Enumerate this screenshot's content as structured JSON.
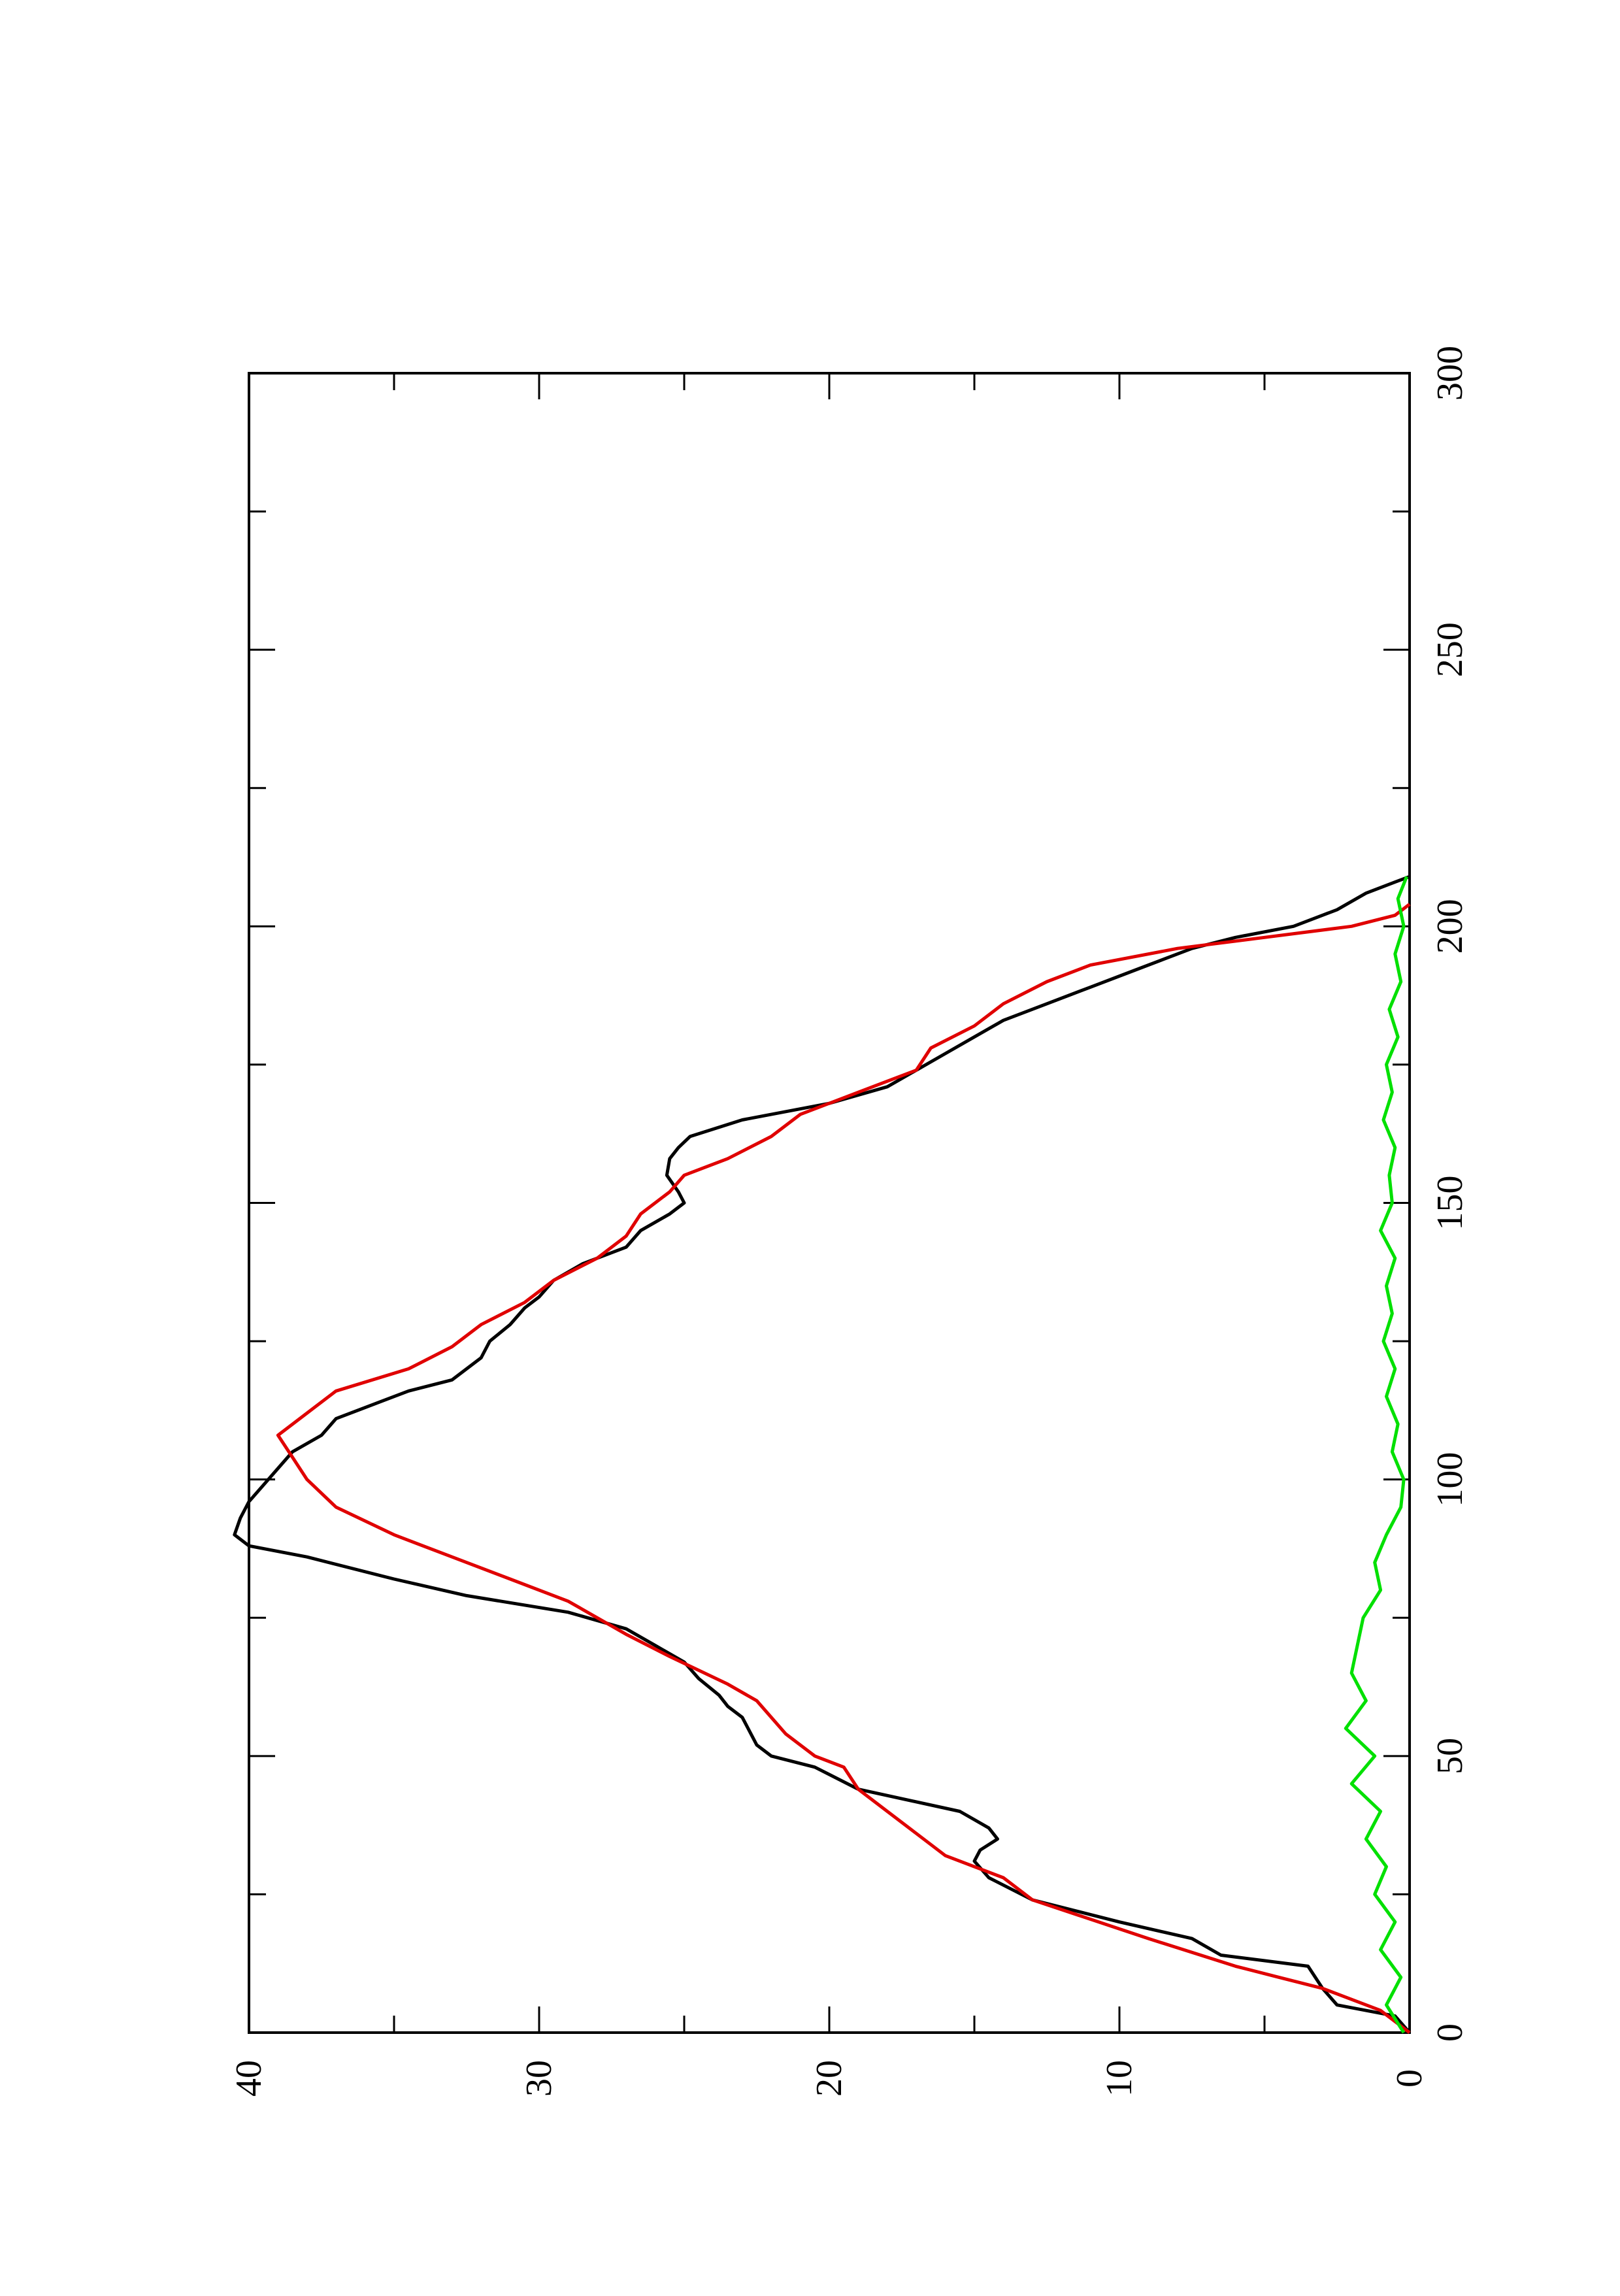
{
  "chart_data": {
    "type": "line",
    "title": "",
    "xlabel": "",
    "ylabel": "",
    "orientation": "rotated-90-ccw",
    "xlim": [
      0,
      300
    ],
    "ylim": [
      0,
      40
    ],
    "x_ticks": [
      "0",
      "50",
      "100",
      "150",
      "200",
      "250",
      "300"
    ],
    "y_ticks": [
      "0",
      "10",
      "20",
      "30",
      "40"
    ],
    "grid": false,
    "legend": "none",
    "series": [
      {
        "color": "#000000",
        "points": [
          [
            0,
            0
          ],
          [
            3,
            0.5
          ],
          [
            5,
            2.5
          ],
          [
            8,
            3
          ],
          [
            12,
            3.5
          ],
          [
            14,
            6.5
          ],
          [
            17,
            7.5
          ],
          [
            20,
            10
          ],
          [
            24,
            13
          ],
          [
            28,
            14.5
          ],
          [
            31,
            15
          ],
          [
            33,
            14.8
          ],
          [
            35,
            14.2
          ],
          [
            37,
            14.5
          ],
          [
            40,
            15.5
          ],
          [
            44,
            19
          ],
          [
            48,
            20.5
          ],
          [
            50,
            22
          ],
          [
            52,
            22.5
          ],
          [
            55,
            22.8
          ],
          [
            57,
            23
          ],
          [
            59,
            23.5
          ],
          [
            61,
            23.8
          ],
          [
            64,
            24.5
          ],
          [
            67,
            25
          ],
          [
            70,
            26
          ],
          [
            73,
            27
          ],
          [
            76,
            29
          ],
          [
            79,
            32.5
          ],
          [
            82,
            35
          ],
          [
            86,
            38
          ],
          [
            88,
            40
          ],
          [
            90,
            40.5
          ],
          [
            93,
            40.3
          ],
          [
            96,
            40
          ],
          [
            99,
            39.5
          ],
          [
            102,
            39
          ],
          [
            105,
            38.5
          ],
          [
            108,
            37.5
          ],
          [
            111,
            37
          ],
          [
            114,
            35.5
          ],
          [
            116,
            34.5
          ],
          [
            118,
            33
          ],
          [
            122,
            32
          ],
          [
            125,
            31.7
          ],
          [
            128,
            31
          ],
          [
            131,
            30.5
          ],
          [
            133,
            30
          ],
          [
            136,
            29.5
          ],
          [
            139,
            28.5
          ],
          [
            142,
            27
          ],
          [
            145,
            26.5
          ],
          [
            148,
            25.5
          ],
          [
            150,
            25
          ],
          [
            152,
            25.2
          ],
          [
            155,
            25.6
          ],
          [
            158,
            25.5
          ],
          [
            160,
            25.2
          ],
          [
            162,
            24.8
          ],
          [
            165,
            23
          ],
          [
            168,
            20
          ],
          [
            171,
            18
          ],
          [
            174,
            17
          ],
          [
            177,
            16
          ],
          [
            180,
            15
          ],
          [
            183,
            14
          ],
          [
            186,
            12.5
          ],
          [
            189,
            11
          ],
          [
            192,
            9.5
          ],
          [
            194,
            8.5
          ],
          [
            196,
            7.5
          ],
          [
            198,
            6
          ],
          [
            200,
            4
          ],
          [
            203,
            2.5
          ],
          [
            206,
            1.5
          ],
          [
            208,
            0.5
          ],
          [
            209,
            0
          ]
        ]
      },
      {
        "color": "#e00000",
        "points": [
          [
            0,
            0
          ],
          [
            4,
            1
          ],
          [
            6,
            2
          ],
          [
            8,
            3
          ],
          [
            10,
            4.5
          ],
          [
            12,
            6
          ],
          [
            17,
            9
          ],
          [
            24,
            13
          ],
          [
            28,
            14
          ],
          [
            32,
            16
          ],
          [
            36,
            17
          ],
          [
            40,
            18
          ],
          [
            44,
            19
          ],
          [
            48,
            19.5
          ],
          [
            50,
            20.5
          ],
          [
            54,
            21.5
          ],
          [
            60,
            22.5
          ],
          [
            63,
            23.5
          ],
          [
            68,
            25.5
          ],
          [
            72,
            27
          ],
          [
            78,
            29
          ],
          [
            82,
            31
          ],
          [
            86,
            33
          ],
          [
            90,
            35
          ],
          [
            95,
            37
          ],
          [
            100,
            38
          ],
          [
            104,
            38.5
          ],
          [
            108,
            39
          ],
          [
            112,
            38
          ],
          [
            116,
            37
          ],
          [
            120,
            34.5
          ],
          [
            124,
            33
          ],
          [
            128,
            32
          ],
          [
            132,
            30.5
          ],
          [
            136,
            29.5
          ],
          [
            140,
            28
          ],
          [
            144,
            27
          ],
          [
            148,
            26.5
          ],
          [
            152,
            25.5
          ],
          [
            155,
            25
          ],
          [
            158,
            23.5
          ],
          [
            162,
            22
          ],
          [
            166,
            21
          ],
          [
            170,
            19
          ],
          [
            174,
            17
          ],
          [
            178,
            16.5
          ],
          [
            182,
            15
          ],
          [
            186,
            14
          ],
          [
            190,
            12.5
          ],
          [
            193,
            11
          ],
          [
            196,
            8
          ],
          [
            198,
            5
          ],
          [
            200,
            2
          ],
          [
            202,
            0.5
          ],
          [
            204,
            0
          ]
        ]
      },
      {
        "color": "#00e000",
        "points": [
          [
            0,
            0.2
          ],
          [
            5,
            0.8
          ],
          [
            10,
            0.3
          ],
          [
            15,
            1
          ],
          [
            20,
            0.5
          ],
          [
            25,
            1.2
          ],
          [
            30,
            0.8
          ],
          [
            35,
            1.5
          ],
          [
            40,
            1
          ],
          [
            45,
            2
          ],
          [
            50,
            1.2
          ],
          [
            55,
            2.2
          ],
          [
            60,
            1.5
          ],
          [
            65,
            2
          ],
          [
            70,
            1.8
          ],
          [
            75,
            1.6
          ],
          [
            80,
            1
          ],
          [
            85,
            1.2
          ],
          [
            90,
            0.8
          ],
          [
            95,
            0.3
          ],
          [
            100,
            0.2
          ],
          [
            105,
            0.6
          ],
          [
            110,
            0.4
          ],
          [
            115,
            0.8
          ],
          [
            120,
            0.5
          ],
          [
            125,
            0.9
          ],
          [
            130,
            0.6
          ],
          [
            135,
            0.8
          ],
          [
            140,
            0.5
          ],
          [
            145,
            1
          ],
          [
            150,
            0.6
          ],
          [
            155,
            0.7
          ],
          [
            160,
            0.5
          ],
          [
            165,
            0.9
          ],
          [
            170,
            0.6
          ],
          [
            175,
            0.8
          ],
          [
            180,
            0.4
          ],
          [
            185,
            0.7
          ],
          [
            190,
            0.3
          ],
          [
            195,
            0.5
          ],
          [
            200,
            0.2
          ],
          [
            205,
            0.4
          ],
          [
            209,
            0.1
          ]
        ]
      }
    ]
  }
}
